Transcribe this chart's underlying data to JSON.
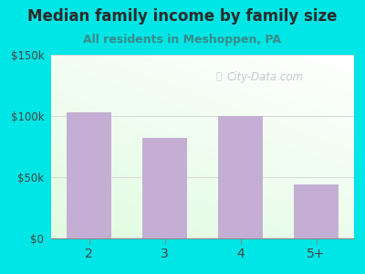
{
  "title": "Median family income by family size",
  "subtitle": "All residents in Meshoppen, PA",
  "categories": [
    "2",
    "3",
    "4",
    "5+"
  ],
  "values": [
    103000,
    82000,
    100000,
    44000
  ],
  "bar_color": "#c4aed4",
  "outer_bg": "#00e5e5",
  "title_color": "#2a2a2a",
  "subtitle_color": "#3a8a8a",
  "tick_color": "#444444",
  "ylim": [
    0,
    150000
  ],
  "yticks": [
    0,
    50000,
    100000,
    150000
  ],
  "ytick_labels": [
    "$0",
    "$50k",
    "$100k",
    "$150k"
  ],
  "watermark": "City-Data.com",
  "watermark_color": "#aaaabb"
}
